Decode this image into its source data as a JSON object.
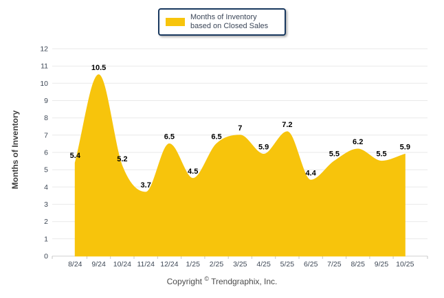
{
  "legend": {
    "label": "Months of Inventory based on Closed Sales",
    "swatch_color": "#F7C40C"
  },
  "y_axis_title": "Months of Inventory",
  "copyright": {
    "prefix": "Copyright",
    "symbol": "©",
    "suffix": "Trendgraphix, Inc."
  },
  "chart_data": {
    "type": "area",
    "title": "Months of Inventory based on Closed Sales",
    "xlabel": "",
    "ylabel": "Months of Inventory",
    "categories": [
      "8/24",
      "9/24",
      "10/24",
      "11/24",
      "12/24",
      "1/25",
      "2/25",
      "3/25",
      "4/25",
      "5/25",
      "6/25",
      "7/25",
      "8/25",
      "9/25",
      "10/25"
    ],
    "values": [
      5.4,
      10.5,
      5.2,
      3.7,
      6.5,
      4.5,
      6.5,
      7,
      5.9,
      7.2,
      4.4,
      5.5,
      6.2,
      5.5,
      5.9
    ],
    "point_labels": [
      "5.4",
      "10.5",
      "5.2",
      "3.7",
      "6.5",
      "4.5",
      "6.5",
      "7",
      "5.9",
      "7.2",
      "4.4",
      "5.5",
      "6.2",
      "5.5",
      "5.9"
    ],
    "ylim": [
      0,
      12
    ],
    "ytick_step": 1,
    "grid": "horizontal",
    "legend_position": "top-center",
    "curve": "smooth-spline",
    "fill_color": "#F7C40C"
  },
  "colors": {
    "gold": "#F7C40C",
    "legend_border": "#17375E",
    "grid_line": "#E9E9E9",
    "axis_line": "#CFCFCF",
    "tick_mark": "#C4C4C4",
    "tick_label": "#3C4654",
    "data_label": "#000000",
    "axis_title": "#404040",
    "legend_text": "#3A4557",
    "copyright_text": "#4A4A4A"
  }
}
